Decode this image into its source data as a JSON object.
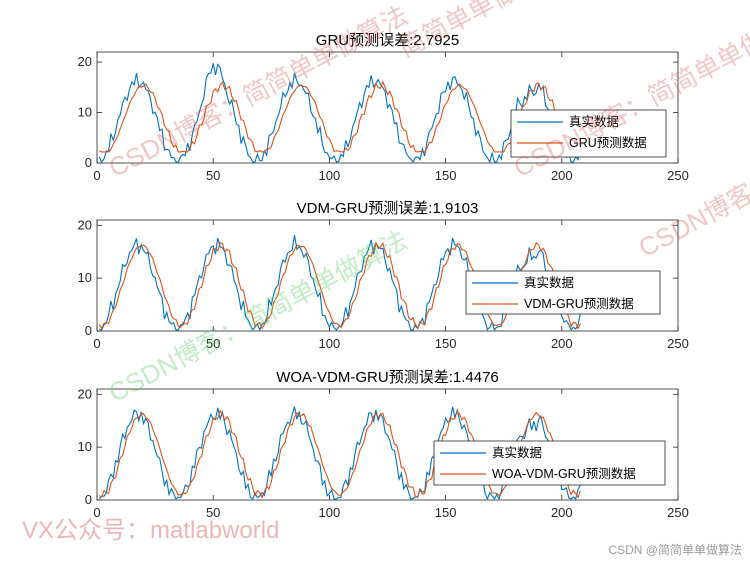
{
  "chart_data": [
    {
      "type": "line",
      "title": "GRU预测误差:2.7925",
      "xlim": [
        0,
        250
      ],
      "ylim": [
        0,
        22
      ],
      "xticks": [
        0,
        50,
        100,
        150,
        200,
        250
      ],
      "yticks": [
        0,
        10,
        20
      ],
      "legend_position": "right-middle",
      "series": [
        {
          "name": "真实数据",
          "color": "#0072BD"
        },
        {
          "name": "GRU预测数据",
          "color": "#D95319"
        }
      ]
    },
    {
      "type": "line",
      "title": "VDM-GRU预测误差:1.9103",
      "xlim": [
        0,
        250
      ],
      "ylim": [
        0,
        21
      ],
      "xticks": [
        0,
        50,
        100,
        150,
        200,
        250
      ],
      "yticks": [
        0,
        10,
        20
      ],
      "legend_position": "right-middle",
      "series": [
        {
          "name": "真实数据",
          "color": "#0072BD"
        },
        {
          "name": "VDM-GRU预测数据",
          "color": "#D95319"
        }
      ]
    },
    {
      "type": "line",
      "title": "WOA-VDM-GRU预测误差:1.4476",
      "xlim": [
        0,
        250
      ],
      "ylim": [
        0,
        21
      ],
      "xticks": [
        0,
        50,
        100,
        150,
        200,
        250
      ],
      "yticks": [
        0,
        10,
        20
      ],
      "legend_position": "right-middle",
      "series": [
        {
          "name": "真实数据",
          "color": "#0072BD"
        },
        {
          "name": "WOA-VDM-GRU预测数据",
          "color": "#D95319"
        }
      ]
    }
  ],
  "watermarks": {
    "blog": "CSDN博客：简简单单做算法",
    "blog_partial_top": "简简单单做",
    "vx": "VX公众号：matlabworld",
    "footer": "CSDN @简简单单做算法"
  }
}
